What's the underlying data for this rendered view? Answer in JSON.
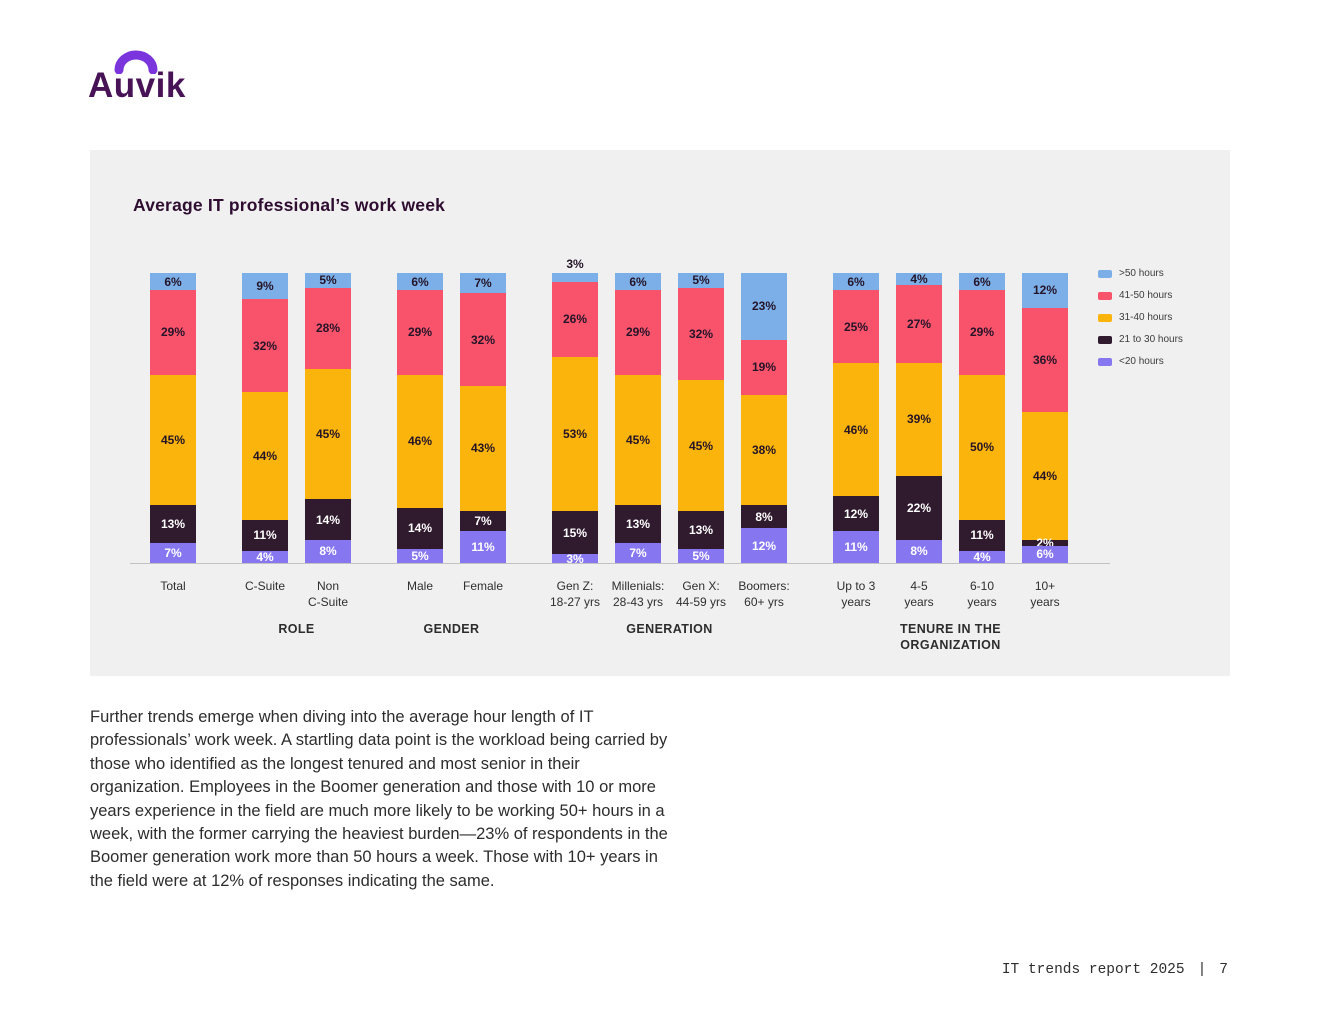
{
  "logo": {
    "text": "Auvik"
  },
  "chart_data": {
    "type": "bar",
    "stacked": true,
    "percent": true,
    "title": "Average IT professional’s work week",
    "ylim": [
      0,
      100
    ],
    "legend_position": "top-right",
    "grid": false,
    "series_order": "bottom-to-top",
    "series": [
      {
        "key": "lt20",
        "name": "<20 hours",
        "color": "#8677F0",
        "label_color": "#FFFFFF"
      },
      {
        "key": "21to30",
        "name": "21 to 30 hours",
        "color": "#301A2E",
        "label_color": "#FFFFFF"
      },
      {
        "key": "31to40",
        "name": "31-40 hours",
        "color": "#FBB40C",
        "label_color": "#241428"
      },
      {
        "key": "41to50",
        "name": "41-50 hours",
        "color": "#F9536B",
        "label_color": "#241428"
      },
      {
        "key": "gt50",
        "name": ">50 hours",
        "color": "#7CAFE8",
        "label_color": "#241428"
      }
    ],
    "legend_order": [
      "gt50",
      "41to50",
      "31to40",
      "21to30",
      "lt20"
    ],
    "groups": [
      {
        "label": "",
        "bars": [
          {
            "category": "Total",
            "category_label": "Total",
            "values": [
              7,
              13,
              45,
              29,
              6
            ]
          }
        ]
      },
      {
        "label": "ROLE",
        "bars": [
          {
            "category": "C-Suite",
            "category_label": "C-Suite",
            "values": [
              4,
              11,
              44,
              32,
              9
            ]
          },
          {
            "category": "Non C-Suite",
            "category_label": "Non\nC-Suite",
            "values": [
              8,
              14,
              45,
              28,
              5
            ]
          }
        ]
      },
      {
        "label": "GENDER",
        "bars": [
          {
            "category": "Male",
            "category_label": "Male",
            "values": [
              5,
              14,
              46,
              29,
              6
            ]
          },
          {
            "category": "Female",
            "category_label": "Female",
            "values": [
              11,
              7,
              43,
              32,
              7
            ]
          }
        ]
      },
      {
        "label": "GENERATION",
        "bars": [
          {
            "category": "Gen Z: 18-27 yrs",
            "category_label": "Gen Z:\n18-27 yrs",
            "values": [
              3,
              15,
              53,
              26,
              3
            ]
          },
          {
            "category": "Millenials: 28-43 yrs",
            "category_label": "Millenials:\n28-43 yrs",
            "values": [
              7,
              13,
              45,
              29,
              6
            ]
          },
          {
            "category": "Gen X: 44-59 yrs",
            "category_label": "Gen X:\n44-59 yrs",
            "values": [
              5,
              13,
              45,
              32,
              5
            ]
          },
          {
            "category": "Boomers: 60+ yrs",
            "category_label": "Boomers:\n60+ yrs",
            "values": [
              12,
              8,
              38,
              19,
              23
            ]
          }
        ]
      },
      {
        "label": "TENURE IN THE\nORGANIZATION",
        "bars": [
          {
            "category": "Up to 3 years",
            "category_label": "Up to 3\nyears",
            "values": [
              11,
              12,
              46,
              25,
              6
            ]
          },
          {
            "category": "4-5 years",
            "category_label": "4-5\nyears",
            "values": [
              8,
              22,
              39,
              27,
              4
            ]
          },
          {
            "category": "6-10 years",
            "category_label": "6-10\nyears",
            "values": [
              4,
              11,
              50,
              29,
              6
            ]
          },
          {
            "category": "10+ years",
            "category_label": "10+\nyears",
            "values": [
              6,
              2,
              44,
              36,
              12
            ]
          }
        ]
      }
    ]
  },
  "paragraph": "Further trends emerge when diving into the average hour length of IT professionals’ work week. A startling data point is the workload being carried by those who identified as the longest tenured and most senior in their organization. Employees in the Boomer generation and those with 10 or more years experience in the field are much more likely to be working 50+ hours in a week, with the former carrying the heaviest burden—23% of respondents in the Boomer generation work more than 50 hours a week. Those with 10+ years in the field were at 12% of responses indicating the same.",
  "footer": {
    "report_title": "IT trends report 2025",
    "separator": "|",
    "page_number": "7"
  }
}
